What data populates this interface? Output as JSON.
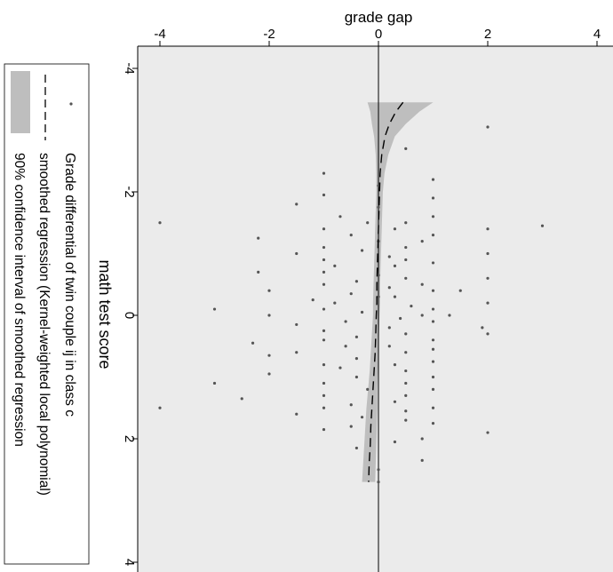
{
  "chart_data": {
    "type": "scatter",
    "title": "",
    "orientation": "rotated-90-clockwise",
    "xlabel": "math test score",
    "ylabel": "grade gap",
    "xlim": [
      -4,
      4
    ],
    "ylim": [
      -4.2,
      4.2
    ],
    "x_ticks": [
      -4,
      -2,
      0,
      2,
      4
    ],
    "y_ticks": [
      -4,
      -2,
      0,
      2,
      4
    ],
    "reference_line_y": 0,
    "grid": false,
    "legend_position": "left",
    "series": [
      {
        "name": "Grade differential of twin couple ij in class c",
        "kind": "points",
        "color": "#555555",
        "points": [
          [
            -3.05,
            2
          ],
          [
            -2.7,
            0.5
          ],
          [
            -2.3,
            -1
          ],
          [
            -2.2,
            1
          ],
          [
            -2.1,
            0
          ],
          [
            -1.95,
            -1
          ],
          [
            -1.9,
            1
          ],
          [
            -1.8,
            -1.5
          ],
          [
            -1.75,
            0
          ],
          [
            -1.6,
            -0.7
          ],
          [
            -1.6,
            1
          ],
          [
            -1.5,
            -0.2
          ],
          [
            -1.5,
            0.5
          ],
          [
            -1.5,
            -4
          ],
          [
            -1.45,
            3
          ],
          [
            -1.4,
            -1
          ],
          [
            -1.4,
            0.3
          ],
          [
            -1.4,
            2
          ],
          [
            -1.3,
            -0.5
          ],
          [
            -1.3,
            1
          ],
          [
            -1.25,
            -2.2
          ],
          [
            -1.2,
            0
          ],
          [
            -1.2,
            0.8
          ],
          [
            -1.1,
            -1
          ],
          [
            -1.1,
            0.5
          ],
          [
            -1.05,
            -0.3
          ],
          [
            -1,
            2
          ],
          [
            -1,
            -1.5
          ],
          [
            -0.95,
            0.2
          ],
          [
            -0.9,
            -1
          ],
          [
            -0.9,
            0.5
          ],
          [
            -0.85,
            1
          ],
          [
            -0.8,
            -0.8
          ],
          [
            -0.8,
            0.3
          ],
          [
            -0.7,
            -2.2
          ],
          [
            -0.7,
            -1
          ],
          [
            -0.65,
            0
          ],
          [
            -0.6,
            0.5
          ],
          [
            -0.6,
            2
          ],
          [
            -0.55,
            -0.4
          ],
          [
            -0.5,
            0.8
          ],
          [
            -0.5,
            -1
          ],
          [
            -0.45,
            0.2
          ],
          [
            -0.4,
            -2
          ],
          [
            -0.4,
            1
          ],
          [
            -0.4,
            1.5
          ],
          [
            -0.35,
            -0.5
          ],
          [
            -0.3,
            0
          ],
          [
            -0.3,
            0.3
          ],
          [
            -0.25,
            -1.2
          ],
          [
            -0.2,
            2
          ],
          [
            -0.2,
            -0.8
          ],
          [
            -0.15,
            0.6
          ],
          [
            -0.1,
            1
          ],
          [
            -0.1,
            -1
          ],
          [
            -0.05,
            -0.3
          ],
          [
            0,
            1.3
          ],
          [
            0,
            0.8
          ],
          [
            0,
            -2
          ],
          [
            -0.1,
            -3
          ],
          [
            0.05,
            0.4
          ],
          [
            0.1,
            -0.6
          ],
          [
            0.1,
            1
          ],
          [
            0.15,
            -1.5
          ],
          [
            0.2,
            0.2
          ],
          [
            0.2,
            1.9
          ],
          [
            0.25,
            -1
          ],
          [
            0.3,
            0.5
          ],
          [
            0.3,
            2
          ],
          [
            0.35,
            -0.4
          ],
          [
            0.4,
            1
          ],
          [
            0.4,
            -1
          ],
          [
            0.45,
            -2.3
          ],
          [
            0.5,
            0.2
          ],
          [
            0.5,
            -0.6
          ],
          [
            0.55,
            1
          ],
          [
            0.6,
            -1.5
          ],
          [
            0.6,
            0.5
          ],
          [
            0.65,
            -2
          ],
          [
            0.7,
            -0.4
          ],
          [
            0.75,
            1
          ],
          [
            0.8,
            -1
          ],
          [
            0.8,
            0.3
          ],
          [
            0.85,
            -0.7
          ],
          [
            0.9,
            0.5
          ],
          [
            0.95,
            -2
          ],
          [
            1,
            1
          ],
          [
            1,
            -0.4
          ],
          [
            1.1,
            -1
          ],
          [
            1.1,
            0.5
          ],
          [
            1.1,
            -3
          ],
          [
            1.2,
            -0.2
          ],
          [
            1.2,
            1
          ],
          [
            1.3,
            -1
          ],
          [
            1.3,
            0.5
          ],
          [
            1.35,
            -2.5
          ],
          [
            1.4,
            0.3
          ],
          [
            1.45,
            -0.5
          ],
          [
            1.5,
            1
          ],
          [
            1.5,
            -1
          ],
          [
            1.5,
            -4
          ],
          [
            1.55,
            0.5
          ],
          [
            1.6,
            -1.5
          ],
          [
            1.65,
            -0.3
          ],
          [
            1.7,
            0.5
          ],
          [
            1.75,
            1
          ],
          [
            1.8,
            -0.5
          ],
          [
            1.85,
            -1
          ],
          [
            1.9,
            2
          ],
          [
            2,
            0.8
          ],
          [
            2.05,
            0.3
          ],
          [
            2.15,
            -0.4
          ],
          [
            2.35,
            0.8
          ],
          [
            2.5,
            0
          ],
          [
            2.7,
            0
          ]
        ]
      },
      {
        "name": "smoothed regression (Kernel-weighted local polynomial)",
        "kind": "line",
        "style": "dashed",
        "color": "#000000",
        "x": [
          -3.45,
          -3.3,
          -3.1,
          -2.9,
          -2.6,
          -2.3,
          -2,
          -1.7,
          -1.4,
          -1.1,
          -0.8,
          -0.5,
          -0.2,
          0,
          0.3,
          0.6,
          0.9,
          1.2,
          1.5,
          1.8,
          2.1,
          2.4,
          2.7
        ],
        "y": [
          0.45,
          0.32,
          0.2,
          0.12,
          0.06,
          0.03,
          0.02,
          0.01,
          0,
          -0.01,
          -0.02,
          -0.03,
          -0.03,
          -0.04,
          -0.05,
          -0.06,
          -0.08,
          -0.1,
          -0.12,
          -0.14,
          -0.15,
          -0.17,
          -0.18
        ]
      },
      {
        "name": "90% confidence interval of smoothed regression",
        "kind": "band",
        "color": "#bebebe",
        "x": [
          -3.45,
          -3.3,
          -3.1,
          -2.9,
          -2.6,
          -2.3,
          -2,
          -1.7,
          -1.4,
          -1.1,
          -0.8,
          -0.5,
          -0.2,
          0,
          0.3,
          0.6,
          0.9,
          1.2,
          1.5,
          1.8,
          2.1,
          2.4,
          2.7
        ],
        "lower": [
          -0.2,
          -0.15,
          -0.12,
          -0.08,
          -0.05,
          -0.04,
          -0.04,
          -0.05,
          -0.06,
          -0.07,
          -0.08,
          -0.09,
          -0.1,
          -0.1,
          -0.12,
          -0.14,
          -0.16,
          -0.19,
          -0.22,
          -0.24,
          -0.26,
          -0.28,
          -0.3
        ],
        "upper": [
          1,
          0.75,
          0.5,
          0.3,
          0.18,
          0.11,
          0.08,
          0.07,
          0.06,
          0.05,
          0.04,
          0.03,
          0.03,
          0.02,
          0.01,
          0,
          -0.01,
          -0.02,
          -0.02,
          -0.03,
          -0.04,
          -0.05,
          -0.06
        ]
      }
    ]
  }
}
